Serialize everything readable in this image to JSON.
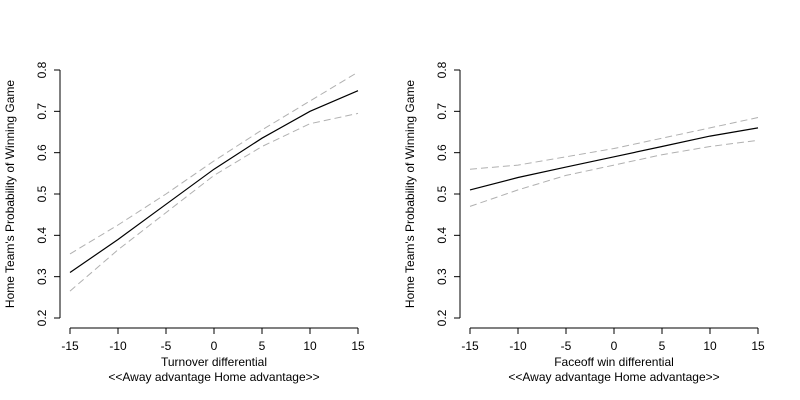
{
  "chart_data": [
    {
      "type": "line",
      "xlabel": "Turnover differential",
      "xlabel_sub": "<<Away advantage  Home advantage>>",
      "ylabel": "Home Team's Probability of Winning Game",
      "xlim": [
        -15,
        15
      ],
      "ylim": [
        0.2,
        0.8
      ],
      "xticks": [
        -15,
        -10,
        -5,
        0,
        5,
        10,
        15
      ],
      "yticks": [
        0.2,
        0.3,
        0.4,
        0.5,
        0.6,
        0.7,
        0.8
      ],
      "grid": false,
      "x": [
        -15,
        -10,
        -5,
        0,
        5,
        10,
        15
      ],
      "series": [
        {
          "role": "estimate",
          "values": [
            0.31,
            0.39,
            0.475,
            0.56,
            0.635,
            0.7,
            0.75
          ]
        },
        {
          "role": "upper",
          "values": [
            0.355,
            0.425,
            0.5,
            0.58,
            0.655,
            0.725,
            0.795
          ]
        },
        {
          "role": "lower",
          "values": [
            0.265,
            0.365,
            0.455,
            0.545,
            0.615,
            0.67,
            0.695
          ]
        }
      ]
    },
    {
      "type": "line",
      "xlabel": "Faceoff win differential",
      "xlabel_sub": "<<Away advantage  Home advantage>>",
      "ylabel": "Home Team's Probability of Winning Game",
      "xlim": [
        -15,
        15
      ],
      "ylim": [
        0.2,
        0.8
      ],
      "xticks": [
        -15,
        -10,
        -5,
        0,
        5,
        10,
        15
      ],
      "yticks": [
        0.2,
        0.3,
        0.4,
        0.5,
        0.6,
        0.7,
        0.8
      ],
      "grid": false,
      "x": [
        -15,
        -10,
        -5,
        0,
        5,
        10,
        15
      ],
      "series": [
        {
          "role": "estimate",
          "values": [
            0.51,
            0.54,
            0.565,
            0.59,
            0.615,
            0.64,
            0.66
          ]
        },
        {
          "role": "upper",
          "values": [
            0.56,
            0.57,
            0.59,
            0.61,
            0.635,
            0.66,
            0.685
          ]
        },
        {
          "role": "lower",
          "values": [
            0.47,
            0.51,
            0.545,
            0.57,
            0.595,
            0.615,
            0.63
          ]
        }
      ]
    }
  ]
}
